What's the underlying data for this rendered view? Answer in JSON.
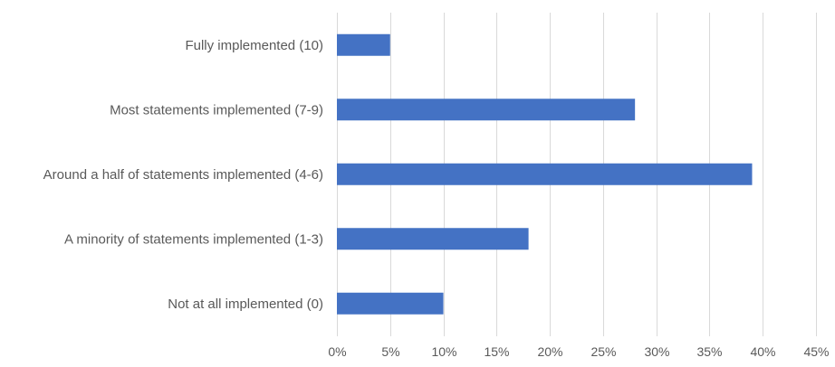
{
  "chart_data": {
    "type": "bar",
    "orientation": "horizontal",
    "title": "",
    "xlabel": "",
    "ylabel": "",
    "categories": [
      "Fully implemented (10)",
      "Most statements implemented (7-9)",
      "Around a half of statements implemented (4-6)",
      "A minority of statements implemented (1-3)",
      "Not at all implemented (0)"
    ],
    "values": [
      5,
      28,
      39,
      18,
      10
    ],
    "value_unit": "%",
    "xlim": [
      0,
      45
    ],
    "xticks": [
      0,
      5,
      10,
      15,
      20,
      25,
      30,
      35,
      40,
      45
    ],
    "xtick_labels": [
      "0%",
      "5%",
      "10%",
      "15%",
      "20%",
      "25%",
      "30%",
      "35%",
      "40%",
      "45%"
    ],
    "grid": "vertical",
    "legend": "none",
    "bar_color": "#4472c4",
    "grid_color": "#d9d9d9",
    "text_color": "#595959"
  }
}
